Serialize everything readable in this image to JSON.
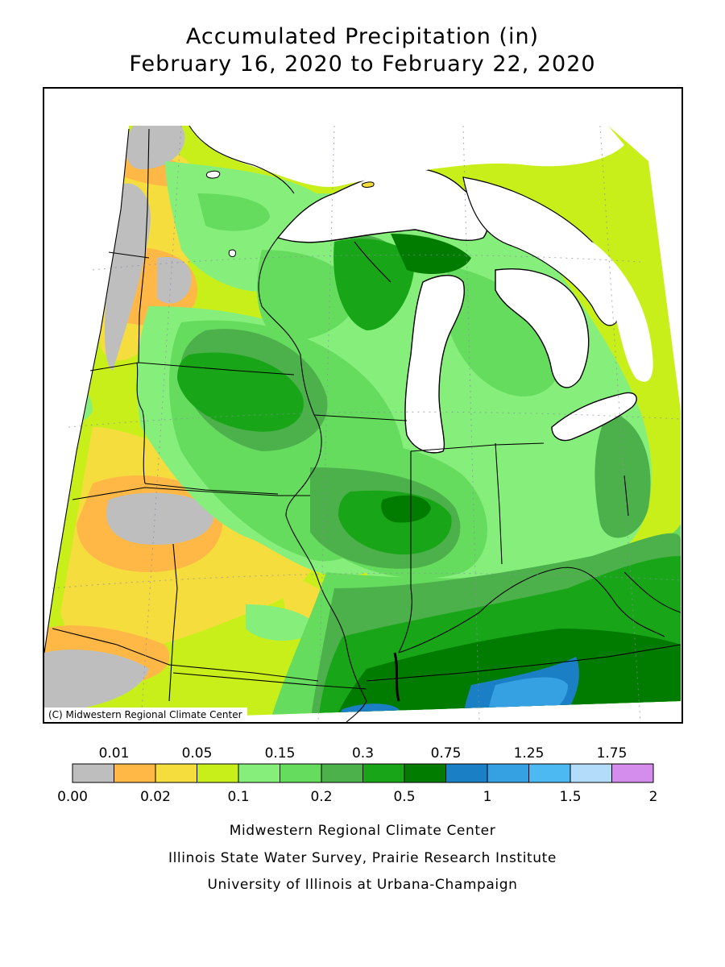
{
  "title": {
    "line1": "Accumulated Precipitation (in)",
    "line2": "February 16, 2020 to February 22, 2020"
  },
  "map": {
    "credit": "(C) Midwestern Regional Climate Center",
    "colors": {
      "gray": "#bebebe",
      "orange": "#ffb845",
      "yellow": "#f5dd3e",
      "lime": "#c9ef1b",
      "lightgreen": "#86ef7c",
      "green1": "#66dc5e",
      "green2": "#4db14b",
      "green3": "#18a618",
      "darkgreen": "#017c01",
      "blue1": "#1b7fc6",
      "blue2": "#35a1e3",
      "lakes": "#ffffff",
      "borders": "#000000"
    }
  },
  "legend": {
    "upper_labels": [
      "0.01",
      "0.05",
      "0.15",
      "0.3",
      "0.75",
      "1.25",
      "1.75"
    ],
    "lower_labels": [
      "0.00",
      "0.02",
      "0.1",
      "0.2",
      "0.5",
      "1",
      "1.5",
      "2"
    ],
    "bins": [
      {
        "lower": 0.0,
        "upper": 0.01,
        "color": "#bebebe"
      },
      {
        "lower": 0.01,
        "upper": 0.02,
        "color": "#ffb845"
      },
      {
        "lower": 0.02,
        "upper": 0.05,
        "color": "#f5dd3e"
      },
      {
        "lower": 0.05,
        "upper": 0.1,
        "color": "#c9ef1b"
      },
      {
        "lower": 0.1,
        "upper": 0.15,
        "color": "#86ef7c"
      },
      {
        "lower": 0.15,
        "upper": 0.2,
        "color": "#66dc5e"
      },
      {
        "lower": 0.2,
        "upper": 0.3,
        "color": "#4db14b"
      },
      {
        "lower": 0.3,
        "upper": 0.5,
        "color": "#18a618"
      },
      {
        "lower": 0.5,
        "upper": 0.75,
        "color": "#017c01"
      },
      {
        "lower": 0.75,
        "upper": 1.0,
        "color": "#1b7fc6"
      },
      {
        "lower": 1.0,
        "upper": 1.25,
        "color": "#35a1e3"
      },
      {
        "lower": 1.25,
        "upper": 1.5,
        "color": "#4db9f3"
      },
      {
        "lower": 1.5,
        "upper": 1.75,
        "color": "#b3dcfa"
      },
      {
        "lower": 1.75,
        "upper": 2.0,
        "color": "#d48ced"
      }
    ]
  },
  "footer": {
    "line1": "Midwestern Regional Climate Center",
    "line2": "Illinois State Water Survey, Prairie Research Institute",
    "line3": "University of Illinois at Urbana-Champaign"
  }
}
